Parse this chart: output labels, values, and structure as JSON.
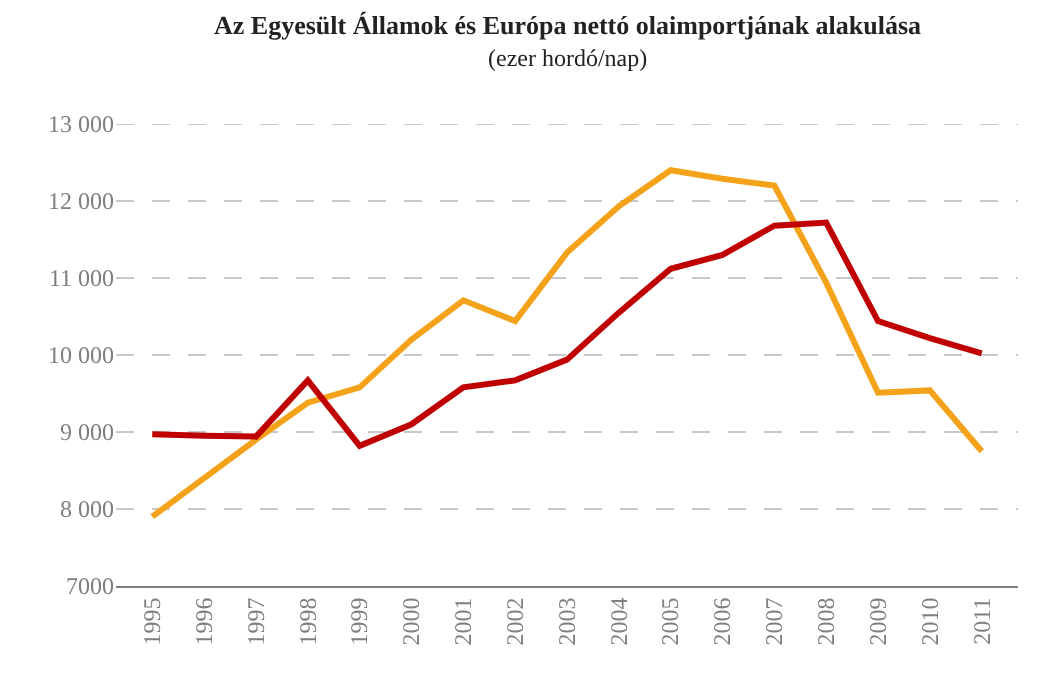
{
  "chart_data": {
    "type": "line",
    "title": "Az Egyesült Államok és Európa nettó olaimportjának alakulása",
    "subtitle": "(ezer hordó/nap)",
    "categories": [
      "1995",
      "1996",
      "1997",
      "1998",
      "1999",
      "2000",
      "2001",
      "2002",
      "2003",
      "2004",
      "2005",
      "2006",
      "2007",
      "2008",
      "2009",
      "2010",
      "2011"
    ],
    "series": [
      {
        "color": "#f5a21b",
        "values": [
          7900,
          8400,
          8900,
          9380,
          9580,
          10200,
          10710,
          10440,
          11330,
          11930,
          12400,
          12290,
          12200,
          10940,
          9510,
          9540,
          8750
        ]
      },
      {
        "color": "#c00000",
        "values": [
          8970,
          8950,
          8940,
          9670,
          8820,
          9100,
          9580,
          9670,
          9940,
          10550,
          11120,
          11300,
          11680,
          11720,
          10440,
          10220,
          10020
        ]
      }
    ],
    "ylim": [
      7000,
      13000
    ],
    "yticks": [
      {
        "value": 7000,
        "label": "7000"
      },
      {
        "value": 8000,
        "label": "8 000"
      },
      {
        "value": 9000,
        "label": "9 000"
      },
      {
        "value": 10000,
        "label": "10 000"
      },
      {
        "value": 11000,
        "label": "11 000"
      },
      {
        "value": 12000,
        "label": "12 000"
      },
      {
        "value": 13000,
        "label": "13 000"
      }
    ],
    "grid": "y",
    "marker": "none",
    "line_style": "solid"
  }
}
